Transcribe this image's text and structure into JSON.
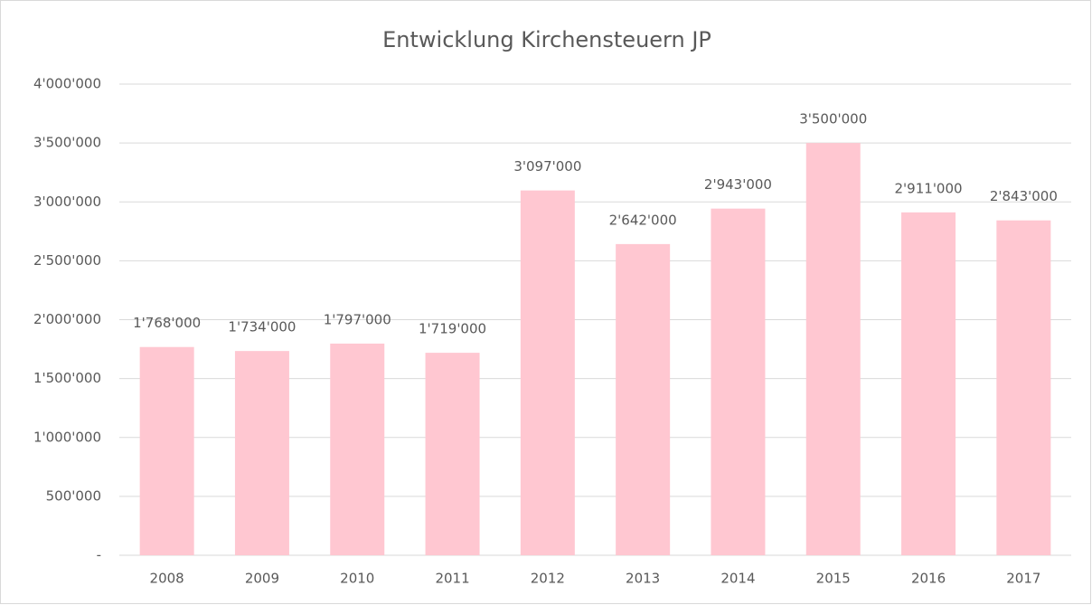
{
  "chart_data": {
    "type": "bar",
    "title": "Entwicklung Kirchensteuern JP",
    "categories": [
      "2008",
      "2009",
      "2010",
      "2011",
      "2012",
      "2013",
      "2014",
      "2015",
      "2016",
      "2017"
    ],
    "values": [
      1768000,
      1734000,
      1797000,
      1719000,
      3097000,
      2642000,
      2943000,
      3500000,
      2911000,
      2843000
    ],
    "value_labels": [
      "1'768'000",
      "1'734'000",
      "1'797'000",
      "1'719'000",
      "3'097'000",
      "2'642'000",
      "2'943'000",
      "3'500'000",
      "2'911'000",
      "2'843'000"
    ],
    "color": "#ffc7d1",
    "ylim": [
      0,
      4000000
    ],
    "yticks": [
      {
        "value": 0,
        "label": "-"
      },
      {
        "value": 500000,
        "label": "500'000"
      },
      {
        "value": 1000000,
        "label": "1'000'000"
      },
      {
        "value": 1500000,
        "label": "1'500'000"
      },
      {
        "value": 2000000,
        "label": "2'000'000"
      },
      {
        "value": 2500000,
        "label": "2'500'000"
      },
      {
        "value": 3000000,
        "label": "3'000'000"
      },
      {
        "value": 3500000,
        "label": "3'500'000"
      },
      {
        "value": 4000000,
        "label": "4'000'000"
      }
    ],
    "grid": true
  }
}
